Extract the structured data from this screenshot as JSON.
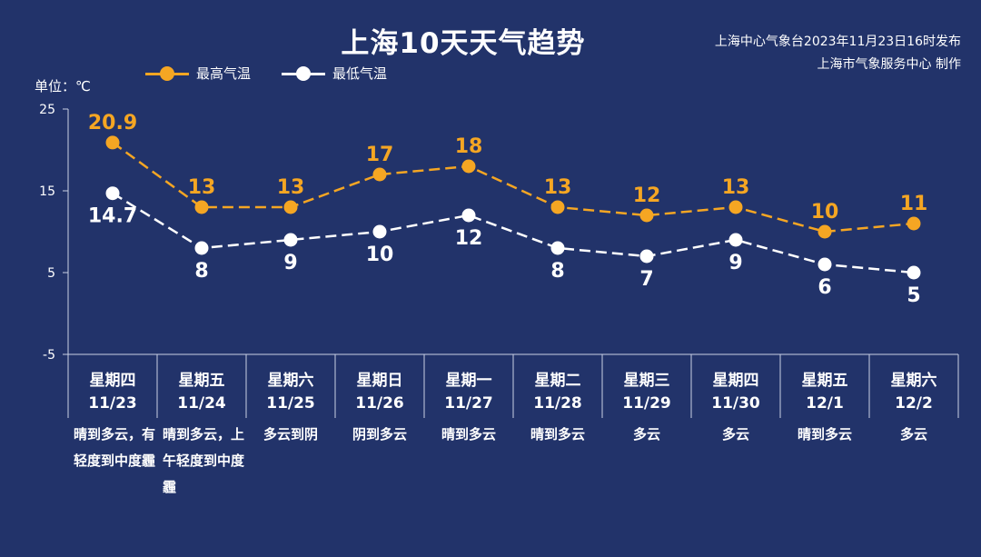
{
  "header": {
    "title": "上海10天天气趋势",
    "source_line1": "上海中心气象台2023年11月23日16时发布",
    "source_line2": "上海市气象服务中心 制作"
  },
  "legend": {
    "high_label": "最高气温",
    "low_label": "最低气温"
  },
  "unit_label": "单位：℃",
  "colors": {
    "background": "#22336a",
    "high": "#f5a623",
    "low": "#ffffff"
  },
  "chart_data": {
    "type": "line",
    "title": "上海10天天气趋势",
    "ylabel": "单位：℃",
    "ylim": [
      -5,
      25
    ],
    "yticks": [
      "25",
      "15",
      "5",
      "-5"
    ],
    "categories": [
      "11/23",
      "11/24",
      "11/25",
      "11/26",
      "11/27",
      "11/28",
      "11/29",
      "11/30",
      "12/1",
      "12/2"
    ],
    "series": [
      {
        "name": "最高气温",
        "values": [
          20.9,
          13,
          13,
          17,
          18,
          13,
          12,
          13,
          10,
          11
        ]
      },
      {
        "name": "最低气温",
        "values": [
          14.7,
          8,
          9,
          10,
          12,
          8,
          7,
          9,
          6,
          5
        ]
      }
    ],
    "data_labels": {
      "high": [
        "20.9",
        "13",
        "13",
        "17",
        "18",
        "13",
        "12",
        "13",
        "10",
        "11"
      ],
      "low": [
        "14.7",
        "8",
        "9",
        "10",
        "12",
        "8",
        "7",
        "9",
        "6",
        "5"
      ]
    },
    "grid": false,
    "legend_position": "top-left"
  },
  "days": [
    {
      "weekday": "星期四",
      "date": "11/23",
      "weather": "晴到多云，有轻度到中度霾"
    },
    {
      "weekday": "星期五",
      "date": "11/24",
      "weather": "晴到多云，上午轻度到中度霾"
    },
    {
      "weekday": "星期六",
      "date": "11/25",
      "weather": "多云到阴"
    },
    {
      "weekday": "星期日",
      "date": "11/26",
      "weather": "阴到多云"
    },
    {
      "weekday": "星期一",
      "date": "11/27",
      "weather": "晴到多云"
    },
    {
      "weekday": "星期二",
      "date": "11/28",
      "weather": "晴到多云"
    },
    {
      "weekday": "星期三",
      "date": "11/29",
      "weather": "多云"
    },
    {
      "weekday": "星期四",
      "date": "11/30",
      "weather": "多云"
    },
    {
      "weekday": "星期五",
      "date": "12/1",
      "weather": "晴到多云"
    },
    {
      "weekday": "星期六",
      "date": "12/2",
      "weather": "多云"
    }
  ]
}
